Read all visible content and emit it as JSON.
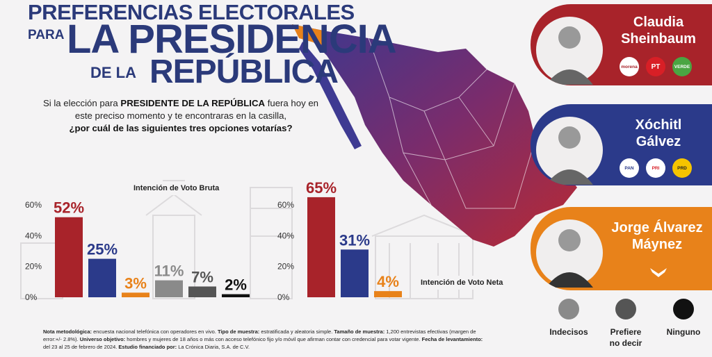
{
  "title": {
    "line1": "PREFERENCIAS ELECTORALES",
    "para": "PARA",
    "line2": "LA PRESIDENCIA",
    "de_la": "DE LA",
    "line3": "REPÚBLICA"
  },
  "question": {
    "part1": "Si la elección para ",
    "bold1": "PRESIDENTE DE LA REPÚBLICA",
    "part2": " fuera hoy en este preciso momento y te encontraras en la casilla,",
    "bold2": "¿por cuál de las siguientes tres opciones votarías?"
  },
  "candidates": [
    {
      "first": "Claudia",
      "last": "Sheinbaum",
      "color": "#a8232a",
      "parties": [
        "morena",
        "PT",
        "VERDE"
      ]
    },
    {
      "first": "Xóchitl",
      "last": "Gálvez",
      "color": "#2b3a8a",
      "parties": [
        "PAN",
        "PRI",
        "PRD"
      ]
    },
    {
      "first": "Jorge Álvarez",
      "last": "Máynez",
      "color": "#e8821a",
      "parties": []
    }
  ],
  "legend": [
    {
      "label": "Indecisos",
      "color": "#8a8a8a"
    },
    {
      "label_line1": "Prefiere",
      "label_line2": "no decir",
      "color": "#555555"
    },
    {
      "label": "Ninguno",
      "color": "#111111"
    }
  ],
  "chart_data": [
    {
      "type": "bar",
      "title": "Intención de Voto Bruta",
      "categories": [
        "Claudia Sheinbaum",
        "Xóchitl Gálvez",
        "Jorge Álvarez Máynez",
        "Indecisos",
        "Prefiere no decir",
        "Ninguno"
      ],
      "values": [
        52,
        25,
        3,
        11,
        7,
        2
      ],
      "value_labels": [
        "52%",
        "25%",
        "3%",
        "11%",
        "7%",
        "2%"
      ],
      "colors": [
        "#a8232a",
        "#2b3a8a",
        "#e8821a",
        "#8a8a8a",
        "#555555",
        "#111111"
      ],
      "label_colors": [
        "#a8232a",
        "#2b3a8a",
        "#e8821a",
        "#8a8a8a",
        "#555555",
        "#111111"
      ],
      "yticks": [
        "60%",
        "40%",
        "20%",
        "0%"
      ],
      "ylim": [
        0,
        60
      ]
    },
    {
      "type": "bar",
      "title": "Intención de Voto Neta",
      "categories": [
        "Claudia Sheinbaum",
        "Xóchitl Gálvez",
        "Jorge Álvarez Máynez"
      ],
      "values": [
        65,
        31,
        4
      ],
      "value_labels": [
        "65%",
        "31%",
        "4%"
      ],
      "colors": [
        "#a8232a",
        "#2b3a8a",
        "#e8821a"
      ],
      "label_colors": [
        "#a8232a",
        "#2b3a8a",
        "#e8821a"
      ],
      "yticks": [
        "60%",
        "40%",
        "20%",
        "0%"
      ],
      "ylim": [
        0,
        60
      ]
    }
  ],
  "footnote": {
    "b1": "Nota metodológica:",
    "t1": " encuesta nacional telefónica con operadores en vivo. ",
    "b2": "Tipo de muestra:",
    "t2": " estratificada y aleatoria simple. ",
    "b3": "Tamaño de muestra:",
    "t3": " 1,200 entrevistas efectivas (margen de error:+/- 2.8%). ",
    "b4": "Universo objetivo:",
    "t4": " hombres y mujeres de 18 años o más con acceso telefónico fijo y/o móvil que afirman contar con credencial para votar vigente. ",
    "b5": "Fecha de levantamiento:",
    "t5": " del 23 al 25 de febrero de 2024. ",
    "b6": "Estudio financiado por:",
    "t6": " La Crónica Diaria, S.A. de C.V."
  }
}
